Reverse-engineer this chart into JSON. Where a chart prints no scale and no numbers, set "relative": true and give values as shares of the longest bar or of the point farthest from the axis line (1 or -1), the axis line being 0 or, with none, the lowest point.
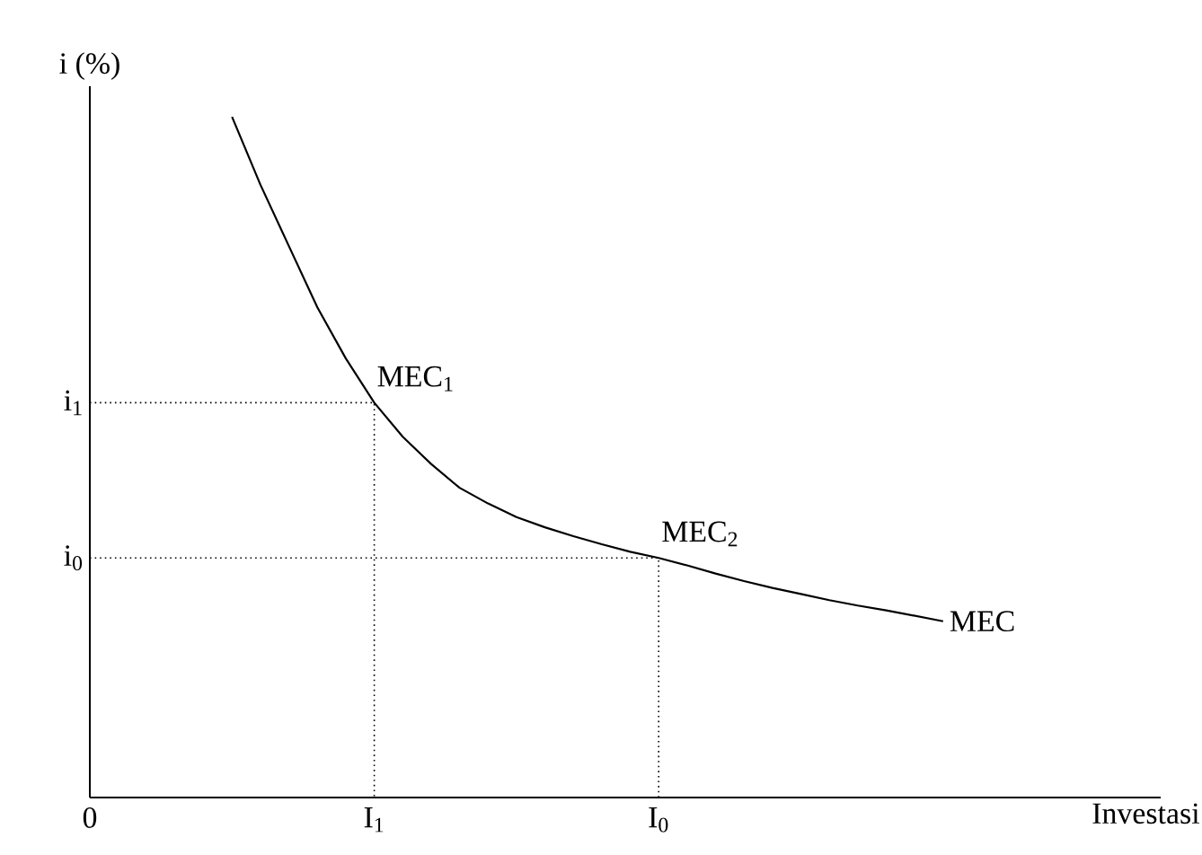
{
  "chart_data": {
    "type": "line",
    "relative": true,
    "xlabel": "Investasi",
    "ylabel": "i (%)",
    "categories": [
      "0",
      null,
      null,
      null,
      null,
      null,
      null,
      null,
      null,
      null,
      "I$_{1}$",
      null,
      null,
      null,
      null,
      null,
      null,
      null,
      null,
      null,
      "I$_{0}$",
      null,
      null,
      null,
      null,
      null,
      null,
      null,
      null,
      null,
      null
    ],
    "series": [
      {
        "name": "MEC",
        "color": "#000000",
        "values": [
          null,
          null,
          null,
          null,
          null,
          1.0,
          0.9,
          0.81,
          0.72,
          0.645,
          0.58,
          0.53,
          0.49,
          0.455,
          0.432,
          0.412,
          0.397,
          0.384,
          0.372,
          0.361,
          0.352,
          0.341,
          0.329,
          0.318,
          0.308,
          0.299,
          0.29,
          0.282,
          0.275,
          0.267,
          0.259
        ]
      }
    ],
    "ref_lines": [
      {
        "axis": "y",
        "value": 0.58,
        "label": "i$_{1}$",
        "line_style": "dotted"
      },
      {
        "axis": "y",
        "value": 0.352,
        "label": "i$_{0}$",
        "line_style": "dotted"
      }
    ],
    "annotations": [
      "MEC$_{1}$",
      "MEC$_{2}$"
    ],
    "marker": "none",
    "line_style": "solid"
  }
}
